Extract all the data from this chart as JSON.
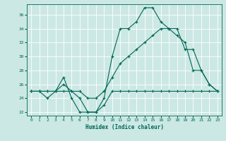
{
  "xlabel": "Humidex (Indice chaleur)",
  "xlim": [
    -0.5,
    23.5
  ],
  "ylim": [
    21.5,
    37.5
  ],
  "xticks": [
    0,
    1,
    2,
    3,
    4,
    5,
    6,
    7,
    8,
    9,
    10,
    11,
    12,
    13,
    14,
    15,
    16,
    17,
    18,
    19,
    20,
    21,
    22,
    23
  ],
  "yticks": [
    22,
    24,
    26,
    28,
    30,
    32,
    34,
    36
  ],
  "bg_color": "#cce8e4",
  "line_color": "#006655",
  "line1_x": [
    0,
    1,
    2,
    3,
    4,
    5,
    6,
    7,
    8,
    9,
    10,
    11,
    12,
    13,
    14,
    15,
    16,
    17,
    18,
    19,
    20,
    21,
    22,
    23
  ],
  "line1_y": [
    25,
    25,
    24,
    25,
    25,
    25,
    24,
    22,
    22,
    23,
    25,
    25,
    25,
    25,
    25,
    25,
    25,
    25,
    25,
    25,
    25,
    25,
    25,
    25
  ],
  "line2_x": [
    0,
    1,
    2,
    3,
    4,
    5,
    6,
    7,
    8,
    9,
    10,
    11,
    12,
    13,
    14,
    15,
    16,
    17,
    18,
    19,
    20,
    21,
    22,
    23
  ],
  "line2_y": [
    25,
    25,
    25,
    25,
    27,
    24,
    22,
    22,
    22,
    24,
    30,
    34,
    34,
    35,
    37,
    37,
    35,
    34,
    33,
    32,
    28,
    28,
    26,
    25
  ],
  "line3_x": [
    0,
    1,
    2,
    3,
    4,
    5,
    6,
    7,
    8,
    9,
    10,
    11,
    12,
    13,
    14,
    15,
    16,
    17,
    18,
    19,
    20,
    21,
    22,
    23
  ],
  "line3_y": [
    25,
    25,
    25,
    25,
    26,
    25,
    25,
    24,
    24,
    25,
    27,
    29,
    30,
    31,
    32,
    33,
    34,
    34,
    34,
    31,
    31,
    28,
    26,
    25
  ]
}
